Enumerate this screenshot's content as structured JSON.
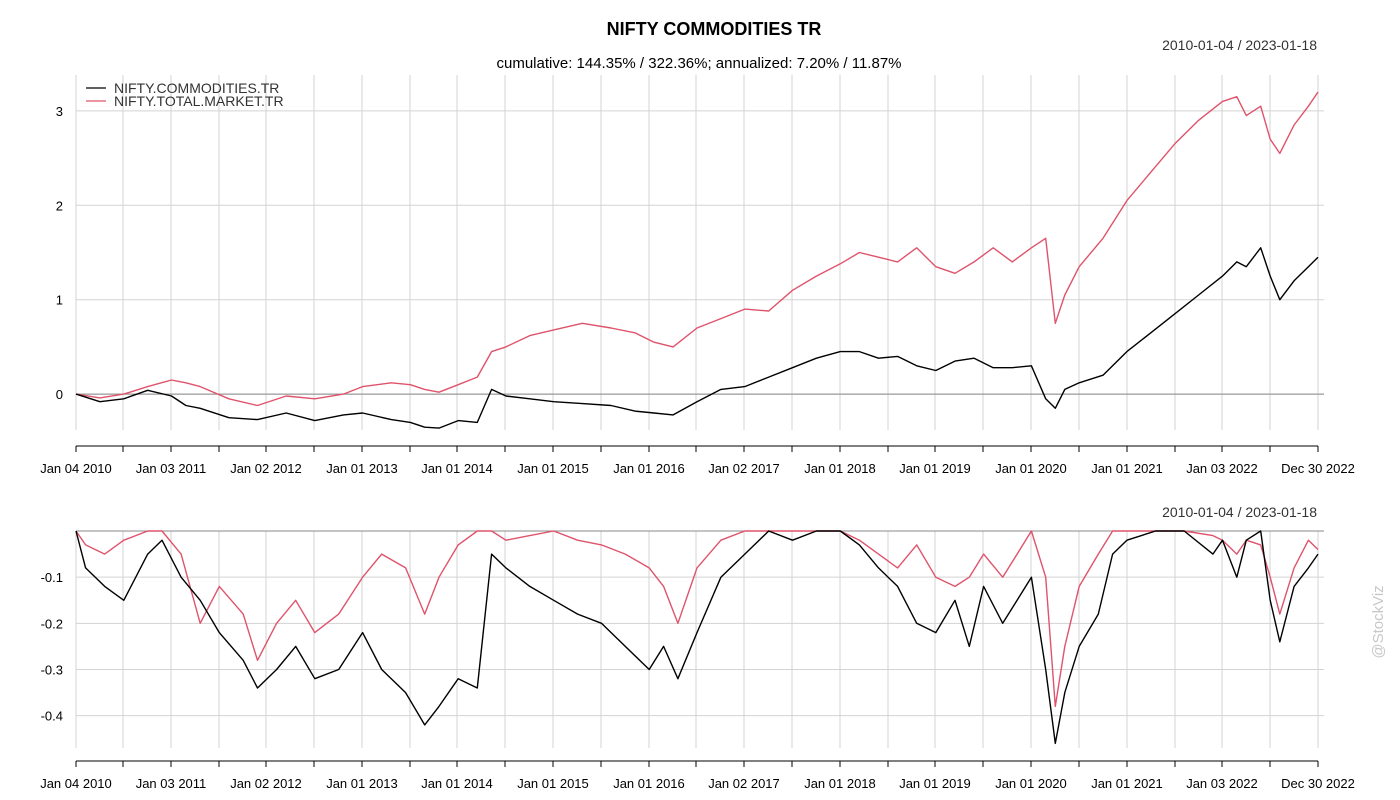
{
  "title": "NIFTY COMMODITIES TR",
  "subtitle": "cumulative: 144.35% / 322.36%; annualized: 7.20% / 11.87%",
  "date_range_top": "2010-01-04 / 2023-01-18",
  "date_range_bottom": "2010-01-04 / 2023-01-18",
  "watermark": "@StockViz",
  "colors": {
    "commodities": "#000000",
    "total_market": "#DF536B",
    "grid": "#d3d3d3"
  },
  "chart_data": [
    {
      "type": "line",
      "panel": "cumulative",
      "x_tick_labels": [
        "Jan 04 2010",
        "Jan 03 2011",
        "Jan 02 2012",
        "Jan 01 2013",
        "Jan 01 2014",
        "Jan 01 2015",
        "Jan 01 2016",
        "Jan 02 2017",
        "Jan 01 2018",
        "Jan 01 2019",
        "Jan 01 2020",
        "Jan 01 2021",
        "Jan 03 2022",
        "Dec 30 2022"
      ],
      "y_ticks": [
        0,
        1,
        2,
        3
      ],
      "ylim": [
        -0.38,
        3.38
      ],
      "legend": [
        "NIFTY.COMMODITIES.TR",
        "NIFTY.TOTAL.MARKET.TR"
      ],
      "legend_position": "top-left",
      "series": [
        {
          "name": "NIFTY.COMMODITIES.TR",
          "x": [
            2010.0,
            2010.25,
            2010.5,
            2010.75,
            2011.0,
            2011.15,
            2011.3,
            2011.6,
            2011.9,
            2012.2,
            2012.5,
            2012.8,
            2013.0,
            2013.3,
            2013.5,
            2013.65,
            2013.8,
            2014.0,
            2014.2,
            2014.35,
            2014.5,
            2014.75,
            2015.0,
            2015.3,
            2015.6,
            2015.85,
            2016.05,
            2016.25,
            2016.5,
            2016.75,
            2017.0,
            2017.25,
            2017.5,
            2017.75,
            2018.0,
            2018.2,
            2018.4,
            2018.6,
            2018.8,
            2019.0,
            2019.2,
            2019.4,
            2019.6,
            2019.8,
            2020.0,
            2020.15,
            2020.25,
            2020.35,
            2020.5,
            2020.75,
            2021.0,
            2021.25,
            2021.5,
            2021.75,
            2022.0,
            2022.15,
            2022.25,
            2022.4,
            2022.5,
            2022.6,
            2022.75,
            2022.9,
            2023.0
          ],
          "values": [
            0.0,
            -0.08,
            -0.05,
            0.04,
            -0.02,
            -0.12,
            -0.15,
            -0.25,
            -0.27,
            -0.2,
            -0.28,
            -0.22,
            -0.2,
            -0.27,
            -0.3,
            -0.35,
            -0.36,
            -0.28,
            -0.3,
            0.05,
            -0.02,
            -0.05,
            -0.08,
            -0.1,
            -0.12,
            -0.18,
            -0.2,
            -0.22,
            -0.08,
            0.05,
            0.08,
            0.18,
            0.28,
            0.38,
            0.45,
            0.45,
            0.38,
            0.4,
            0.3,
            0.25,
            0.35,
            0.38,
            0.28,
            0.28,
            0.3,
            -0.05,
            -0.15,
            0.05,
            0.12,
            0.2,
            0.45,
            0.65,
            0.85,
            1.05,
            1.25,
            1.4,
            1.35,
            1.55,
            1.25,
            1.0,
            1.2,
            1.35,
            1.45
          ]
        },
        {
          "name": "NIFTY.TOTAL.MARKET.TR",
          "x": [
            2010.0,
            2010.25,
            2010.5,
            2010.75,
            2011.0,
            2011.15,
            2011.3,
            2011.6,
            2011.9,
            2012.2,
            2012.5,
            2012.8,
            2013.0,
            2013.3,
            2013.5,
            2013.65,
            2013.8,
            2014.0,
            2014.2,
            2014.35,
            2014.5,
            2014.75,
            2015.0,
            2015.3,
            2015.6,
            2015.85,
            2016.05,
            2016.25,
            2016.5,
            2016.75,
            2017.0,
            2017.25,
            2017.5,
            2017.75,
            2018.0,
            2018.2,
            2018.4,
            2018.6,
            2018.8,
            2019.0,
            2019.2,
            2019.4,
            2019.6,
            2019.8,
            2020.0,
            2020.15,
            2020.25,
            2020.35,
            2020.5,
            2020.75,
            2021.0,
            2021.25,
            2021.5,
            2021.75,
            2022.0,
            2022.15,
            2022.25,
            2022.4,
            2022.5,
            2022.6,
            2022.75,
            2022.9,
            2023.0
          ],
          "values": [
            0.0,
            -0.04,
            0.0,
            0.08,
            0.15,
            0.12,
            0.08,
            -0.05,
            -0.12,
            -0.02,
            -0.05,
            0.0,
            0.08,
            0.12,
            0.1,
            0.05,
            0.02,
            0.1,
            0.18,
            0.45,
            0.5,
            0.62,
            0.68,
            0.75,
            0.7,
            0.65,
            0.55,
            0.5,
            0.7,
            0.8,
            0.9,
            0.88,
            1.1,
            1.25,
            1.38,
            1.5,
            1.45,
            1.4,
            1.55,
            1.35,
            1.28,
            1.4,
            1.55,
            1.4,
            1.55,
            1.65,
            0.75,
            1.05,
            1.35,
            1.65,
            2.05,
            2.35,
            2.65,
            2.9,
            3.1,
            3.15,
            2.95,
            3.05,
            2.7,
            2.55,
            2.85,
            3.05,
            3.2
          ]
        }
      ]
    },
    {
      "type": "line",
      "panel": "drawdown",
      "x_tick_labels": [
        "Jan 04 2010",
        "Jan 03 2011",
        "Jan 02 2012",
        "Jan 01 2013",
        "Jan 01 2014",
        "Jan 01 2015",
        "Jan 01 2016",
        "Jan 02 2017",
        "Jan 01 2018",
        "Jan 01 2019",
        "Jan 01 2020",
        "Jan 01 2021",
        "Jan 03 2022",
        "Dec 30 2022"
      ],
      "y_ticks": [
        -0.1,
        -0.2,
        -0.3,
        -0.4
      ],
      "ylim": [
        -0.47,
        0.0
      ],
      "series": [
        {
          "name": "NIFTY.COMMODITIES.TR",
          "x": [
            2010.0,
            2010.1,
            2010.3,
            2010.5,
            2010.75,
            2010.9,
            2011.1,
            2011.3,
            2011.5,
            2011.75,
            2011.9,
            2012.1,
            2012.3,
            2012.5,
            2012.75,
            2013.0,
            2013.2,
            2013.45,
            2013.65,
            2013.8,
            2014.0,
            2014.2,
            2014.35,
            2014.5,
            2014.75,
            2015.0,
            2015.25,
            2015.5,
            2015.75,
            2016.0,
            2016.15,
            2016.3,
            2016.5,
            2016.75,
            2017.0,
            2017.25,
            2017.5,
            2017.75,
            2018.0,
            2018.2,
            2018.4,
            2018.6,
            2018.8,
            2019.0,
            2019.2,
            2019.35,
            2019.5,
            2019.7,
            2019.85,
            2020.0,
            2020.15,
            2020.25,
            2020.35,
            2020.5,
            2020.7,
            2020.85,
            2021.0,
            2021.3,
            2021.6,
            2021.9,
            2022.0,
            2022.15,
            2022.25,
            2022.4,
            2022.5,
            2022.6,
            2022.75,
            2022.9,
            2023.0
          ],
          "values": [
            0.0,
            -0.08,
            -0.12,
            -0.15,
            -0.05,
            -0.02,
            -0.1,
            -0.15,
            -0.22,
            -0.28,
            -0.34,
            -0.3,
            -0.25,
            -0.32,
            -0.3,
            -0.22,
            -0.3,
            -0.35,
            -0.42,
            -0.38,
            -0.32,
            -0.34,
            -0.05,
            -0.08,
            -0.12,
            -0.15,
            -0.18,
            -0.2,
            -0.25,
            -0.3,
            -0.25,
            -0.32,
            -0.22,
            -0.1,
            -0.05,
            0.0,
            -0.02,
            0.0,
            0.0,
            -0.03,
            -0.08,
            -0.12,
            -0.2,
            -0.22,
            -0.15,
            -0.25,
            -0.12,
            -0.2,
            -0.15,
            -0.1,
            -0.3,
            -0.46,
            -0.35,
            -0.25,
            -0.18,
            -0.05,
            -0.02,
            0.0,
            0.0,
            -0.05,
            -0.02,
            -0.1,
            -0.02,
            0.0,
            -0.15,
            -0.24,
            -0.12,
            -0.08,
            -0.05
          ]
        },
        {
          "name": "NIFTY.TOTAL.MARKET.TR",
          "x": [
            2010.0,
            2010.1,
            2010.3,
            2010.5,
            2010.75,
            2010.9,
            2011.1,
            2011.3,
            2011.5,
            2011.75,
            2011.9,
            2012.1,
            2012.3,
            2012.5,
            2012.75,
            2013.0,
            2013.2,
            2013.45,
            2013.65,
            2013.8,
            2014.0,
            2014.2,
            2014.35,
            2014.5,
            2014.75,
            2015.0,
            2015.25,
            2015.5,
            2015.75,
            2016.0,
            2016.15,
            2016.3,
            2016.5,
            2016.75,
            2017.0,
            2017.25,
            2017.5,
            2017.75,
            2018.0,
            2018.2,
            2018.4,
            2018.6,
            2018.8,
            2019.0,
            2019.2,
            2019.35,
            2019.5,
            2019.7,
            2019.85,
            2020.0,
            2020.15,
            2020.25,
            2020.35,
            2020.5,
            2020.7,
            2020.85,
            2021.0,
            2021.3,
            2021.6,
            2021.9,
            2022.0,
            2022.15,
            2022.25,
            2022.4,
            2022.5,
            2022.6,
            2022.75,
            2022.9,
            2023.0
          ],
          "values": [
            0.0,
            -0.03,
            -0.05,
            -0.02,
            0.0,
            0.0,
            -0.05,
            -0.2,
            -0.12,
            -0.18,
            -0.28,
            -0.2,
            -0.15,
            -0.22,
            -0.18,
            -0.1,
            -0.05,
            -0.08,
            -0.18,
            -0.1,
            -0.03,
            0.0,
            0.0,
            -0.02,
            -0.01,
            0.0,
            -0.02,
            -0.03,
            -0.05,
            -0.08,
            -0.12,
            -0.2,
            -0.08,
            -0.02,
            0.0,
            0.0,
            0.0,
            0.0,
            0.0,
            -0.02,
            -0.05,
            -0.08,
            -0.03,
            -0.1,
            -0.12,
            -0.1,
            -0.05,
            -0.1,
            -0.05,
            0.0,
            -0.1,
            -0.38,
            -0.25,
            -0.12,
            -0.05,
            0.0,
            0.0,
            0.0,
            0.0,
            -0.01,
            -0.02,
            -0.05,
            -0.02,
            -0.03,
            -0.1,
            -0.18,
            -0.08,
            -0.02,
            -0.04
          ]
        }
      ]
    }
  ]
}
